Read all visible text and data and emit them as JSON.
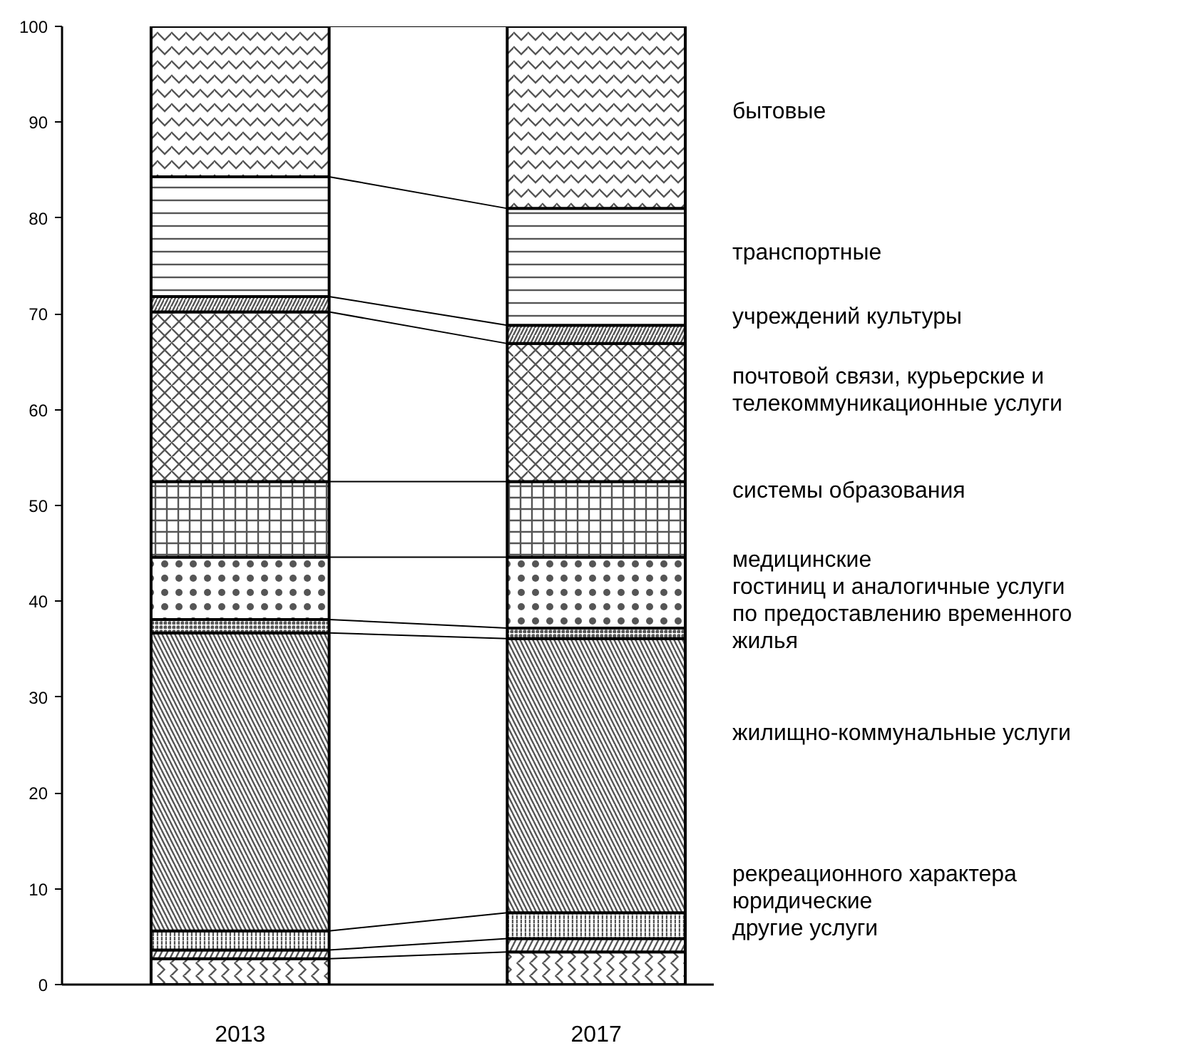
{
  "chart_data": {
    "type": "bar",
    "stacked": true,
    "categories": [
      "2013",
      "2017"
    ],
    "ylim": [
      0,
      100
    ],
    "yticks": [
      0,
      10,
      20,
      30,
      40,
      50,
      60,
      70,
      80,
      90,
      100
    ],
    "grid": false,
    "legend": false,
    "series": [
      {
        "name": "другие услуги",
        "color": "#ffffff",
        "values": [
          2.7,
          3.4
        ]
      },
      {
        "name": "юридические",
        "color": "#ffffff",
        "values": [
          0.9,
          1.4
        ]
      },
      {
        "name": "рекреационного характера",
        "color": "#ffffff",
        "values": [
          2.0,
          2.7
        ]
      },
      {
        "name": "жилищно-коммунальные услуги",
        "color": "#ffffff",
        "values": [
          31.1,
          28.6
        ]
      },
      {
        "name": "гостиниц и аналогичные услуги по предоставлению временного жилья",
        "color": "#ffffff",
        "values": [
          1.4,
          1.1
        ]
      },
      {
        "name": "медицинские",
        "color": "#ffffff",
        "values": [
          6.5,
          7.4
        ]
      },
      {
        "name": "системы образования",
        "color": "#ffffff",
        "values": [
          7.9,
          7.9
        ]
      },
      {
        "name": "почтовой связи, курьерские и телекоммуникационные услуги",
        "color": "#ffffff",
        "values": [
          17.7,
          14.4
        ]
      },
      {
        "name": "учреждений культуры",
        "color": "#ffffff",
        "values": [
          1.6,
          1.9
        ]
      },
      {
        "name": "транспортные",
        "color": "#ffffff",
        "values": [
          12.5,
          12.2
        ]
      },
      {
        "name": "бытовые",
        "color": "#ffffff",
        "values": [
          15.7,
          19.0
        ]
      }
    ]
  }
}
